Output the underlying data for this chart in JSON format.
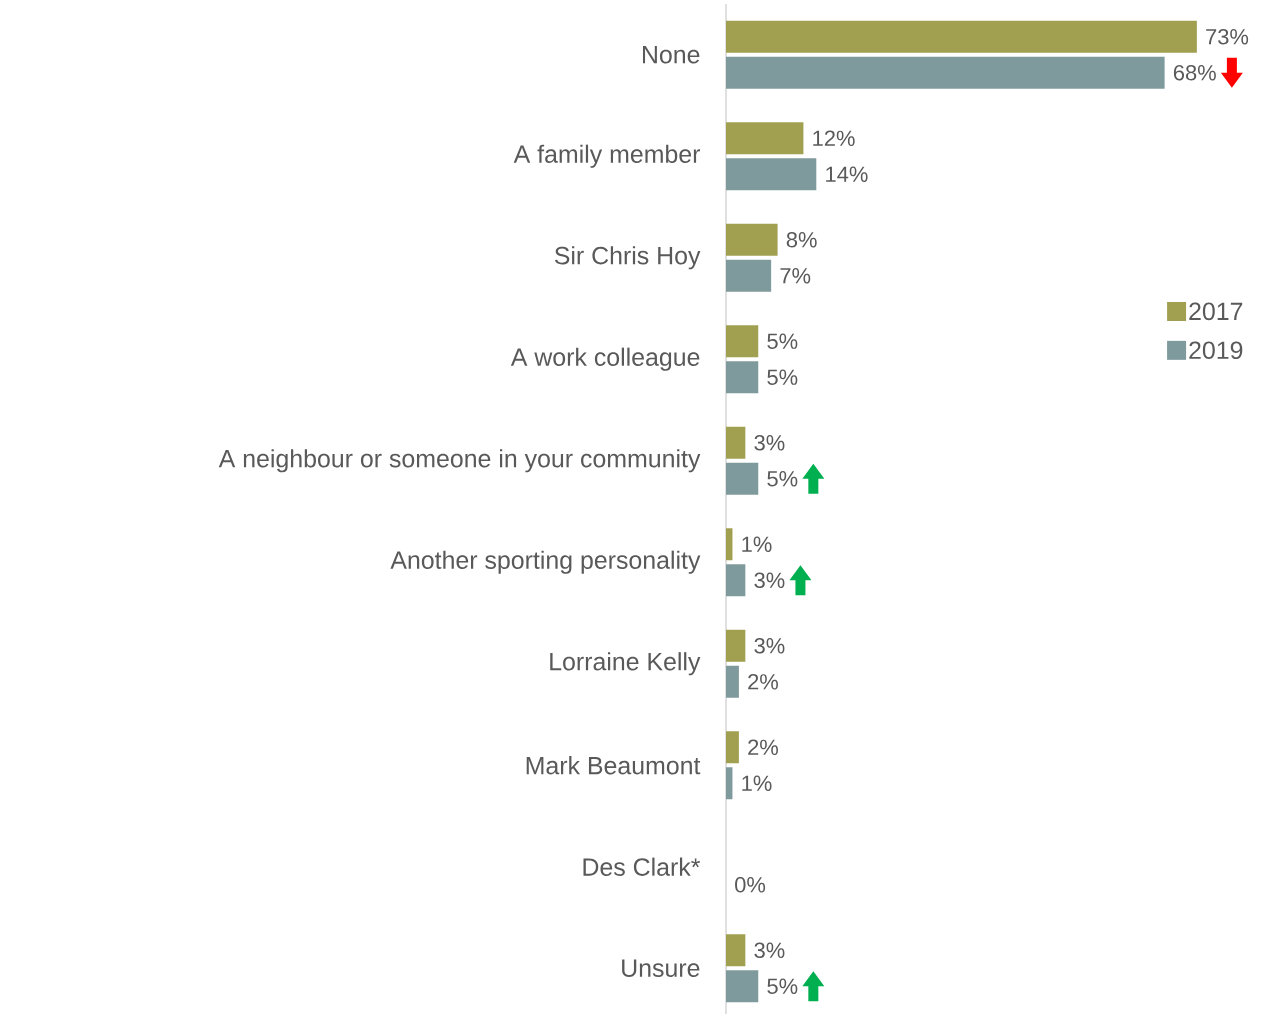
{
  "chart_data": {
    "type": "bar",
    "orientation": "horizontal",
    "legend": "right",
    "categories": [
      "None",
      "A family member",
      "Sir Chris Hoy",
      "A work colleague",
      "A neighbour or someone in your community",
      "Another sporting personality",
      "Lorraine Kelly",
      "Mark Beaumont",
      "Des Clark*",
      "Unsure"
    ],
    "series": [
      {
        "name": "2017",
        "color": "#a0a050",
        "values": [
          73,
          12,
          8,
          5,
          3,
          1,
          3,
          2,
          null,
          3
        ],
        "value_labels": [
          "73%",
          "12%",
          "8%",
          "5%",
          "3%",
          "1%",
          "3%",
          "2%",
          null,
          "3%"
        ]
      },
      {
        "name": "2019",
        "color": "#7f9a9c",
        "values": [
          68,
          14,
          7,
          5,
          5,
          3,
          2,
          1,
          0,
          5
        ],
        "value_labels": [
          "68%",
          "14%",
          "7%",
          "5%",
          "5%",
          "3%",
          "2%",
          "1%",
          "0%",
          "5%"
        ]
      }
    ]
  }
}
